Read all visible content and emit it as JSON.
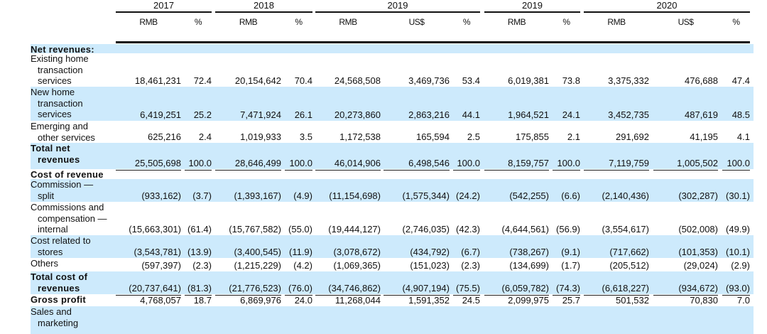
{
  "header": {
    "years": [
      "2017",
      "2018",
      "2019",
      "2019",
      "2020"
    ],
    "subheaders": [
      "RMB",
      "%",
      "RMB",
      "%",
      "RMB",
      "US$",
      "%",
      "RMB",
      "%",
      "RMB",
      "US$",
      "%"
    ]
  },
  "rows": [
    {
      "label": [
        "Net revenues:"
      ],
      "bold": true,
      "band": true,
      "values": []
    },
    {
      "label": [
        "Existing home",
        "transaction",
        "services"
      ],
      "band": false,
      "values": [
        "18,461,231",
        "72.4",
        "20,154,642",
        "70.4",
        "24,568,508",
        "3,469,736",
        "53.4",
        "6,019,381",
        "73.8",
        "3,375,332",
        "476,688",
        "47.4"
      ]
    },
    {
      "label": [
        "New home",
        "transaction",
        "services"
      ],
      "band": true,
      "values": [
        "6,419,251",
        "25.2",
        "7,471,924",
        "26.1",
        "20,273,860",
        "2,863,216",
        "44.1",
        "1,964,521",
        "24.1",
        "3,452,735",
        "487,619",
        "48.5"
      ]
    },
    {
      "label": [
        "Emerging and",
        "other services"
      ],
      "band": false,
      "underline": "u1",
      "values": [
        "625,216",
        "2.4",
        "1,019,933",
        "3.5",
        "1,172,538",
        "165,594",
        "2.5",
        "175,855",
        "2.1",
        "291,692",
        "41,195",
        "4.1"
      ]
    },
    {
      "label": [
        "Total net",
        "revenues"
      ],
      "bold": true,
      "band": true,
      "underline": "u1",
      "values": [
        "25,505,698",
        "100.0",
        "28,646,499",
        "100.0",
        "46,014,906",
        "6,498,546",
        "100.0",
        "8,159,757",
        "100.0",
        "7,119,759",
        "1,005,502",
        "100.0"
      ]
    },
    {
      "label": [
        "Cost of revenue"
      ],
      "bold": true,
      "band": false,
      "values": []
    },
    {
      "label": [
        "Commission —",
        "split"
      ],
      "band": true,
      "values": [
        "(933,162)",
        "(3.7)",
        "(1,393,167)",
        "(4.9)",
        "(11,154,698)",
        "(1,575,344)",
        "(24.2)",
        "(542,255)",
        "(6.6)",
        "(2,140,436)",
        "(302,287)",
        "(30.1)"
      ]
    },
    {
      "label": [
        "Commissions and",
        "compensation —",
        "internal"
      ],
      "band": false,
      "values": [
        "(15,663,301)",
        "(61.4)",
        "(15,767,582)",
        "(55.0)",
        "(19,444,127)",
        "(2,746,035)",
        "(42.3)",
        "(4,644,561)",
        "(56.9)",
        "(3,554,617)",
        "(502,008)",
        "(49.9)"
      ]
    },
    {
      "label": [
        "Cost related to",
        "stores"
      ],
      "band": true,
      "values": [
        "(3,543,781)",
        "(13.9)",
        "(3,400,545)",
        "(11.9)",
        "(3,078,672)",
        "(434,792)",
        "(6.7)",
        "(738,267)",
        "(9.1)",
        "(717,662)",
        "(101,353)",
        "(10.1)"
      ]
    },
    {
      "label": [
        "Others"
      ],
      "band": false,
      "underline": "u1",
      "values": [
        "(597,397)",
        "(2.3)",
        "(1,215,229)",
        "(4.2)",
        "(1,069,365)",
        "(151,023)",
        "(2.3)",
        "(134,699)",
        "(1.7)",
        "(205,512)",
        "(29,024)",
        "(2.9)"
      ]
    },
    {
      "label": [
        "Total cost of",
        "revenues"
      ],
      "bold": true,
      "band": true,
      "underline": "u1",
      "values": [
        "(20,737,641)",
        "(81.3)",
        "(21,776,523)",
        "(76.0)",
        "(34,746,862)",
        "(4,907,194)",
        "(75.5)",
        "(6,059,782)",
        "(74.3)",
        "(6,618,227)",
        "(934,672)",
        "(93.0)"
      ]
    },
    {
      "label": [
        "Gross profit"
      ],
      "bold": true,
      "band": false,
      "underline": "u1",
      "values": [
        "4,768,057",
        "18.7",
        "6,869,976",
        "24.0",
        "11,268,044",
        "1,591,352",
        "24.5",
        "2,099,975",
        "25.7",
        "501,532",
        "70,830",
        "7.0"
      ]
    },
    {
      "label": [
        "Sales and",
        "marketing"
      ],
      "band": true,
      "values": []
    }
  ]
}
